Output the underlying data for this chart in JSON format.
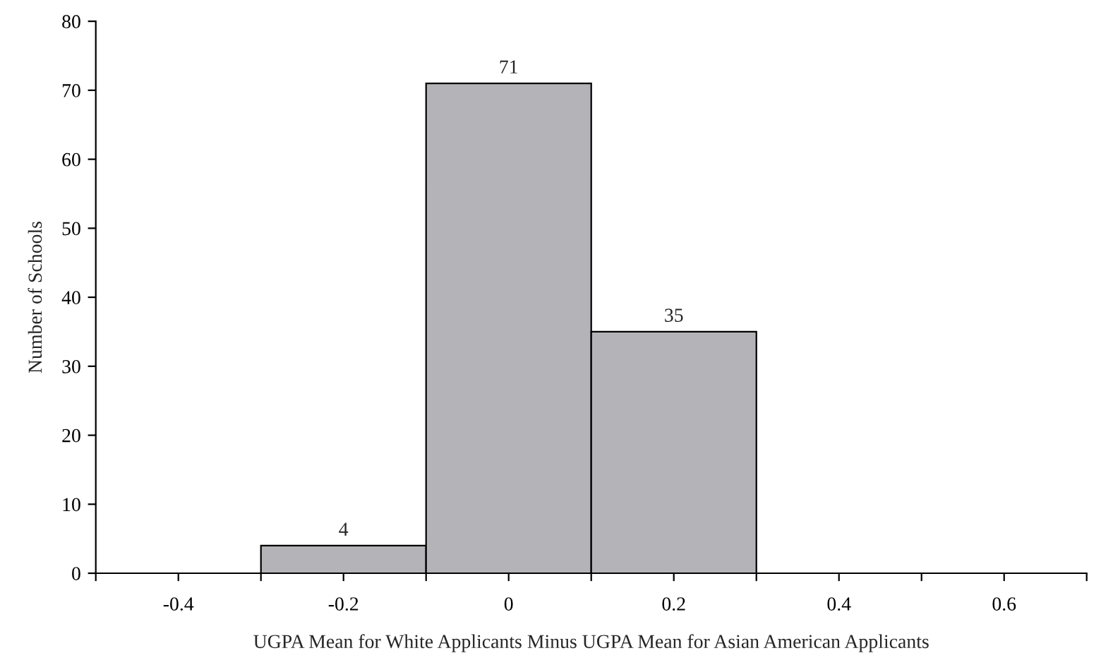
{
  "chart_data": {
    "type": "histogram",
    "xlabel": "UGPA Mean for White Applicants Minus UGPA Mean for Asian American Applicants",
    "ylabel": "Number of Schools",
    "bins": [
      -0.5,
      -0.3,
      -0.1,
      0.1,
      0.3,
      0.5,
      0.7
    ],
    "values": [
      0,
      4,
      71,
      35,
      0,
      0
    ],
    "value_labels": [
      null,
      "4",
      "71",
      "35",
      null,
      null
    ],
    "color": "#b4b4b8",
    "xlim": [
      -0.5,
      0.7
    ],
    "xticks": [
      {
        "value": -0.5,
        "label": null
      },
      {
        "value": -0.4,
        "label": "-0.4"
      },
      {
        "value": -0.3,
        "label": null
      },
      {
        "value": -0.2,
        "label": "-0.2"
      },
      {
        "value": -0.1,
        "label": null
      },
      0,
      {
        "value": 0.1,
        "label": null
      },
      {
        "value": 0.2,
        "label": "0.2"
      },
      {
        "value": 0.3,
        "label": null
      },
      {
        "value": 0.4,
        "label": "0.4"
      },
      {
        "value": 0.5,
        "label": null
      },
      {
        "value": 0.6,
        "label": "0.6"
      },
      {
        "value": 0.7,
        "label": null
      }
    ],
    "ylim": [
      0,
      80
    ],
    "yticks": [
      0,
      10,
      20,
      30,
      40,
      50,
      60,
      70,
      80
    ],
    "grid": false
  }
}
